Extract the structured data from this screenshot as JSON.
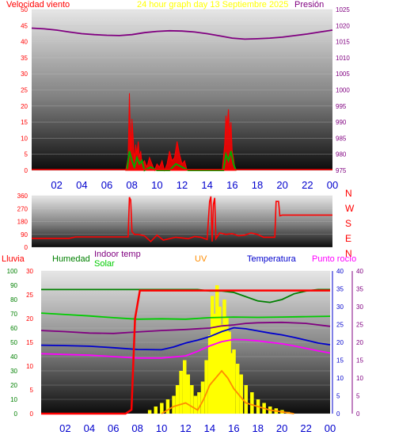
{
  "chart_data": [
    {
      "type": "line",
      "title": "24 hour graph day   13 Septiembre 2025",
      "left_axis_label": "Velocidad viento",
      "right_axis_label": "Presión",
      "colors": {
        "title": "#ffff00",
        "left_label": "#ff0000",
        "right_label": "#800080",
        "wind": "#ff0000",
        "gust": "#00aa00",
        "pressure": "#800080"
      },
      "ylim_left": [
        0,
        50
      ],
      "yticks_left": [
        "50",
        "45",
        "40",
        "35",
        "30",
        "25",
        "20",
        "15",
        "10",
        "5",
        "0"
      ],
      "ylim_right": [
        975,
        1025
      ],
      "yticks_right": [
        "1025",
        "1020",
        "1015",
        "1010",
        "1005",
        "1000",
        "995",
        "990",
        "985",
        "980",
        "975"
      ],
      "x_hours": [
        0,
        24
      ],
      "x_ticks": [
        "02",
        "04",
        "06",
        "08",
        "10",
        "12",
        "14",
        "16",
        "18",
        "20",
        "22",
        "00"
      ],
      "series": [
        {
          "key": "pressure",
          "axis": "right",
          "x": [
            0,
            1,
            2,
            3,
            4,
            5,
            6,
            7,
            8,
            9,
            10,
            11,
            12,
            13,
            14,
            15,
            16,
            17,
            18,
            19,
            20,
            21,
            22,
            23,
            24
          ],
          "values": [
            1019.2,
            1019.0,
            1018.6,
            1018.0,
            1017.5,
            1017.2,
            1017.0,
            1016.9,
            1017.2,
            1017.8,
            1018.2,
            1018.4,
            1018.3,
            1018.0,
            1017.5,
            1016.8,
            1016.1,
            1015.8,
            1015.9,
            1016.1,
            1016.4,
            1016.9,
            1017.4,
            1018.0,
            1018.6
          ]
        },
        {
          "key": "wind",
          "axis": "left",
          "x": [
            7.5,
            7.7,
            7.8,
            7.9,
            8.0,
            8.1,
            8.2,
            8.3,
            8.4,
            8.5,
            8.6,
            8.7,
            8.8,
            9.0,
            9.2,
            9.4,
            9.6,
            9.8,
            10.0,
            10.2,
            10.4,
            10.6,
            10.8,
            11.0,
            11.2,
            11.4,
            11.6,
            11.8,
            12.0,
            12.2,
            12.4,
            12.6,
            12.8,
            15.2,
            15.4,
            15.5,
            15.6,
            15.7,
            15.8,
            15.9,
            16.0,
            16.1,
            16.2,
            16.3
          ],
          "values": [
            0,
            4,
            24,
            6,
            16,
            10,
            3,
            8,
            5,
            9,
            4,
            6,
            2,
            3,
            1,
            4,
            2,
            0,
            2,
            1,
            3,
            0,
            2,
            6,
            3,
            4,
            9,
            5,
            2,
            3,
            0,
            0,
            0,
            0,
            8,
            17,
            14,
            19,
            11,
            15,
            6,
            4,
            1,
            0
          ]
        },
        {
          "key": "gust",
          "axis": "left",
          "x": [
            7.6,
            7.8,
            8.0,
            8.2,
            8.4,
            8.6,
            8.8,
            9.0,
            9.5,
            10.0,
            11.0,
            11.5,
            12.0,
            12.5,
            13.0,
            15.3,
            15.5,
            15.7,
            15.9,
            16.1,
            16.3
          ],
          "values": [
            0,
            6,
            3,
            1,
            4,
            2,
            3,
            0,
            1,
            0,
            0,
            2,
            1,
            0,
            0,
            0,
            5,
            3,
            6,
            2,
            0
          ]
        }
      ]
    },
    {
      "type": "line",
      "title": "",
      "compass_labels": [
        "N",
        "W",
        "S",
        "E",
        "N"
      ],
      "ylim": [
        0,
        360
      ],
      "yticks": [
        "360",
        "270",
        "180",
        "90",
        "0"
      ],
      "colors": {
        "line": "#ff0000",
        "compass": "#ff0000"
      },
      "x": [
        0,
        2,
        3,
        3.5,
        4,
        5,
        6,
        7,
        7.7,
        7.8,
        7.9,
        8.0,
        8.2,
        8.5,
        9,
        9.5,
        10,
        10.5,
        11,
        11.5,
        12,
        12.5,
        13,
        13.5,
        14,
        14.2,
        14.3,
        14.4,
        14.5,
        14.6,
        14.7,
        15,
        15.5,
        16,
        16.5,
        17,
        17.5,
        18,
        18.5,
        19,
        19.4,
        19.5,
        19.7,
        19.8,
        20,
        21,
        22,
        23,
        24
      ],
      "values": [
        62,
        62,
        62,
        72,
        72,
        72,
        72,
        72,
        72,
        350,
        330,
        110,
        90,
        90,
        80,
        40,
        85,
        50,
        60,
        70,
        65,
        60,
        75,
        70,
        55,
        320,
        355,
        40,
        300,
        345,
        60,
        100,
        90,
        95,
        80,
        85,
        100,
        90,
        70,
        70,
        70,
        320,
        320,
        220,
        225,
        225,
        225,
        225,
        225
      ]
    },
    {
      "type": "area",
      "title": "",
      "header_labels": {
        "lluvia": "Lluvia",
        "humedad": "Humedad",
        "indoor": "Indoor temp",
        "solar": "Solar",
        "uv": "UV",
        "temperatura": "Temperatura",
        "punto_rocio": "Punto rocío"
      },
      "colors": {
        "lluvia": "#ff0000",
        "humedad": "#008000",
        "indoor": "#800080",
        "solar": "#00cc00",
        "uv": "#ff8c00",
        "temperatura": "#0000cd",
        "punto_rocio": "#ff00ff",
        "solar_fill": "#ffff00"
      },
      "yticks_humidity": [
        "100",
        "90",
        "80",
        "70",
        "60",
        "50",
        "40",
        "30",
        "20",
        "10",
        "0"
      ],
      "yticks_rain": [
        "30",
        "25",
        "20",
        "15",
        "10",
        "5",
        "0"
      ],
      "yticks_temp_right1": [
        "40",
        "35",
        "30",
        "25",
        "20",
        "15",
        "10",
        "5",
        "0"
      ],
      "yticks_temp_right2": [
        "40",
        "35",
        "30",
        "25",
        "20",
        "15",
        "10",
        "5",
        "0"
      ],
      "ylim_humidity": [
        0,
        100
      ],
      "ylim_temp": [
        0,
        40
      ],
      "x_ticks": [
        "02",
        "04",
        "06",
        "08",
        "10",
        "12",
        "14",
        "16",
        "18",
        "20",
        "22",
        "00"
      ],
      "series": [
        {
          "key": "humedad",
          "axis": "humidity",
          "x": [
            0,
            2,
            4,
            6,
            8,
            10,
            12,
            13,
            14,
            15,
            16,
            17,
            18,
            19,
            20,
            21,
            22,
            23,
            24
          ],
          "values": [
            87,
            87,
            87,
            87,
            87,
            87,
            87,
            87,
            86,
            86,
            85,
            82,
            79,
            78,
            80,
            84,
            86,
            87,
            87
          ]
        },
        {
          "key": "indoor",
          "axis": "temp",
          "x": [
            0,
            2,
            4,
            6,
            8,
            10,
            12,
            14,
            15,
            16,
            17,
            18,
            20,
            22,
            24
          ],
          "values": [
            23.3,
            23.0,
            22.6,
            22.5,
            22.9,
            23.3,
            23.6,
            24.0,
            24.6,
            24.9,
            25.3,
            25.5,
            25.6,
            25.3,
            24.5
          ]
        },
        {
          "key": "solar",
          "axis": "temp",
          "x": [
            0,
            2,
            4,
            6,
            8,
            10,
            12,
            14,
            16,
            18,
            20,
            22,
            24
          ],
          "values": [
            28.2,
            27.8,
            27.4,
            26.9,
            26.5,
            26.6,
            26.5,
            26.9,
            27.1,
            27.0,
            27.1,
            27.2,
            27.3
          ]
        },
        {
          "key": "temperatura",
          "axis": "temp",
          "x": [
            0,
            2,
            4,
            6,
            8,
            10,
            11,
            12,
            13,
            14,
            15,
            16,
            17,
            18,
            19,
            20,
            21,
            22,
            23,
            24
          ],
          "values": [
            19.2,
            19.1,
            18.9,
            18.5,
            18.0,
            17.9,
            18.7,
            19.8,
            20.6,
            21.6,
            23.0,
            24.1,
            23.8,
            23.2,
            22.6,
            22.1,
            21.4,
            20.6,
            19.8,
            19.3
          ]
        },
        {
          "key": "punto_rocio",
          "axis": "temp",
          "x": [
            0,
            2,
            4,
            6,
            8,
            10,
            12,
            13,
            14,
            15,
            16,
            17,
            18,
            19,
            20,
            21,
            22,
            23,
            24
          ],
          "values": [
            16.8,
            16.6,
            16.4,
            16.0,
            15.6,
            15.6,
            16.2,
            17.5,
            19.0,
            20.2,
            20.8,
            20.7,
            20.4,
            20.0,
            19.6,
            19.0,
            18.3,
            17.6,
            17.0
          ]
        },
        {
          "key": "lluvia",
          "axis": "rain",
          "x": [
            0,
            7.0,
            7.5,
            7.8,
            8.2,
            24
          ],
          "values": [
            0,
            0,
            0.8,
            20.0,
            25.9,
            25.9
          ]
        },
        {
          "key": "uv",
          "axis": "temp",
          "x": [
            10,
            11,
            12,
            12.5,
            13,
            13.5,
            14,
            14.5,
            15,
            15.5,
            16,
            16.5,
            17,
            18,
            19,
            20,
            21
          ],
          "values": [
            0,
            2,
            3,
            2,
            1,
            4,
            8,
            10,
            12,
            10,
            7,
            5,
            3,
            2,
            1,
            0.5,
            0
          ]
        }
      ],
      "solar_bars": {
        "x": [
          9.0,
          9.5,
          10.0,
          10.5,
          11.0,
          11.3,
          11.6,
          11.9,
          12.2,
          12.5,
          12.8,
          13.1,
          13.4,
          13.7,
          14.0,
          14.2,
          14.4,
          14.6,
          14.8,
          15.0,
          15.2,
          15.4,
          15.6,
          15.8,
          16.0,
          16.3,
          16.6,
          17.0,
          17.5,
          18.0,
          18.5,
          19.0,
          19.5,
          20.0,
          20.5
        ],
        "values": [
          1,
          2,
          3,
          4,
          5,
          8,
          12,
          15,
          11,
          8,
          5,
          6,
          9,
          15,
          22,
          33,
          28,
          36,
          30,
          25,
          32,
          27,
          23,
          17,
          18,
          14,
          11,
          8,
          6,
          4,
          3,
          2,
          1.5,
          1,
          0.5
        ]
      }
    }
  ]
}
